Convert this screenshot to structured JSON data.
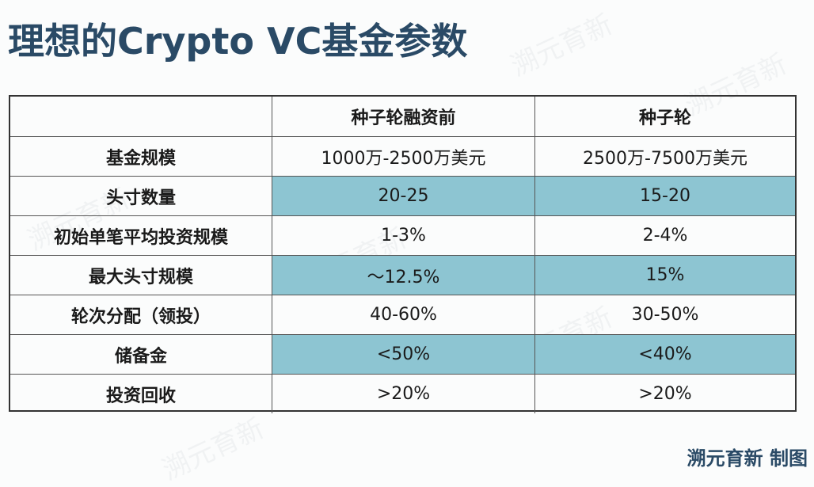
{
  "title": "理想的Crypto VC基金参数",
  "table": {
    "headers": [
      "",
      "种子轮融资前",
      "种子轮"
    ],
    "rows": [
      {
        "label": "基金规模",
        "pre_seed": "1000万-2500万美元",
        "seed": "2500万-7500万美元",
        "highlight": false
      },
      {
        "label": "头寸数量",
        "pre_seed": "20-25",
        "seed": "15-20",
        "highlight": true
      },
      {
        "label": "初始单笔平均投资规模",
        "pre_seed": "1-3%",
        "seed": "2-4%",
        "highlight": false
      },
      {
        "label": "最大头寸规模",
        "pre_seed": "～12.5%",
        "seed": "15%",
        "highlight": true
      },
      {
        "label": "轮次分配（领投）",
        "pre_seed": "40-60%",
        "seed": "30-50%",
        "highlight": false
      },
      {
        "label": "储备金",
        "pre_seed": "<50%",
        "seed": "<40%",
        "highlight": true
      },
      {
        "label": "投资回收",
        "pre_seed": ">20%",
        "seed": ">20%",
        "highlight": false
      }
    ]
  },
  "credit": "溯元育新 制图",
  "watermark_text": "溯元育新",
  "colors": {
    "title": "#2a4a66",
    "highlight": "#8dc5d2",
    "border": "#333333"
  }
}
